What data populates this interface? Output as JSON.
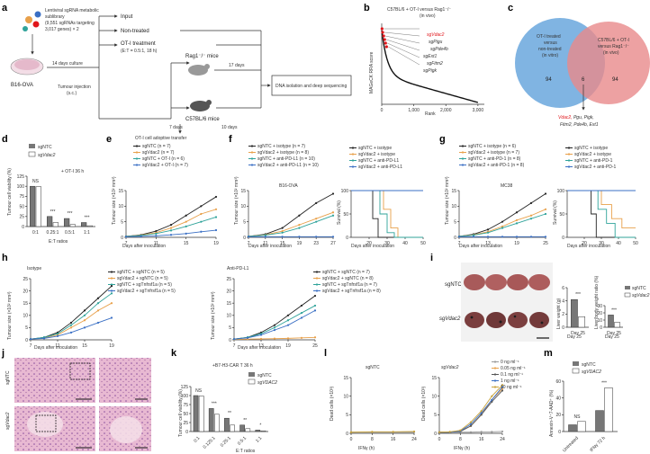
{
  "panels": {
    "a": {
      "letter": "a",
      "library": "Lentiviral sgRNA metabolic sublibrary (9,551 sgRNAs targeting 3,017 genes) × 2",
      "library_lines": [
        "Lentiviral sgRNA metabolic",
        "sublibrary",
        "(9,551 sgRNAs targeting",
        "3,017 genes) × 2"
      ],
      "cell": "B16-OVA",
      "culture": "14 days culture",
      "input": "Input",
      "nontreated": "Non-treated",
      "oti_treatment": "OT-I treatment",
      "et": "(E:T = 0.5:1, 18 h)",
      "tumour_injection": "Tumour injection",
      "sc": "(s.c.)",
      "rag": "Rag1⁻/⁻ mice",
      "c57": "C57BL/6 mice",
      "days17": "17 days",
      "days7": "7 days",
      "days10": "10 days",
      "transfer": "OT-I cell adoptive transfer",
      "dna": "DNA isolation and deep sequencing"
    },
    "b": {
      "letter": "b",
      "title": "C57BL/6 + OT-I versus Rag1⁻/⁻",
      "subtitle": "(in vivo)",
      "ylabel": "MAGeCK RRA score",
      "xlabel": "Rank",
      "genes": [
        "sgVdac2",
        "sgPigu",
        "sgPde4b",
        "sgExt1",
        "sgFitm2",
        "sgPigk"
      ],
      "highlight_color": "#e0161b"
    },
    "c": {
      "letter": "c",
      "left_label": [
        "OT-I treated",
        "versus",
        "non-treated",
        "(in vitro)"
      ],
      "right_label": [
        "C57BL/6 + OT-I",
        "versus Rag1⁻/⁻",
        "(in vivo)"
      ],
      "left_n": "94",
      "overlap_n": "6",
      "right_n": "94",
      "genes_red": "Vdac2,",
      "genes_rest": " Pgu, Pigk,",
      "genes_line2": "Fitm2, Pde4b, Ext1",
      "left_color": "#5b9bd5",
      "right_color": "#e8898b"
    },
    "d": {
      "letter": "d",
      "ylabel": "Tumour cell viability (%)",
      "xlabel": "E:T ratios",
      "annotation": "+ OT-I 36 h",
      "legend": [
        "sgNTC",
        "sgVdac2"
      ],
      "sig": [
        "NS",
        "***",
        "***",
        "***"
      ]
    },
    "e": {
      "letter": "e",
      "ylabel": "Tumour size (×10² mm³)",
      "xlabel": "Days after inoculation",
      "legend": [
        "sgNTC (n = 7)",
        "sgVdac2 (n = 7)",
        "sgNTC + OT-I (n = 6)",
        "sgVdac2 + OT-I (n = 7)"
      ]
    },
    "f": {
      "letter": "f",
      "ylabel": "Tumour size (×10² mm³)",
      "xlabel": "Days after inoculation",
      "tag": "B16-OVA",
      "legend": [
        "sgNTC + isotype (n = 7)",
        "sgVdac2 + isotype (n = 8)",
        "sgNTC + anti-PD-L1 (n = 10)",
        "sgVdac2 + anti-PD-L1 (n = 10)"
      ],
      "surv_legend": [
        "sgNTC + isotype",
        "sgVdac2 + isotype",
        "sgNTC + anti-PD-L1",
        "sgVdac2 + anti-PD-L1"
      ],
      "surv_ylabel": "Survival (%)"
    },
    "g": {
      "letter": "g",
      "ylabel": "Tumour size (×10² mm³)",
      "xlabel": "Days after inoculation",
      "tag": "MC38",
      "legend": [
        "sgNTC + isotype (n = 6)",
        "sgVdac2 + isotype (n = 7)",
        "sgNTC + anti-PD-1 (n = 8)",
        "sgVdac2 + anti-PD-1 (n = 8)"
      ],
      "surv_legend": [
        "sgNTC + isotype",
        "sgVdac2 + isotype",
        "sgNTC + anti-PD-1",
        "sgVdac2 + anti-PD-1"
      ],
      "surv_ylabel": "Survival (%)"
    },
    "h": {
      "letter": "h",
      "ylabel": "Tumour size (×10² mm³)",
      "xlabel": "Days after inoculation",
      "left_tag": "Isotype",
      "right_tag": "Anti-PD-L1",
      "left_legend": [
        "sgNTC + sgNTC (n = 5)",
        "sgVdac2 + sgNTC (n = 5)",
        "sgNTC + sgTnfrsf1a (n = 5)",
        "sgVdac2 + sgTnfrsf1a (n = 5)"
      ],
      "right_legend": [
        "sgNTC + sgNTC (n = 7)",
        "sgVdac2 + sgNTC (n = 8)",
        "sgNTC + sgTnfrsf1a (n = 7)",
        "sgVdac2 + sgTnfrsf1a (n = 8)"
      ]
    },
    "i": {
      "letter": "i",
      "row1": "sgNTC",
      "row2": "sgVdac2",
      "ylabel1": "Liver weight (g)",
      "ylabel2": "Liver/body weight ratio (%)",
      "xlabel": "Day 25",
      "legend": [
        "sgNTC",
        "sgVdac2"
      ]
    },
    "j": {
      "letter": "j",
      "row1": "sgNTC",
      "row2": "sgVdac2"
    },
    "k": {
      "letter": "k",
      "ylabel": "Tumour cell viability (%)",
      "xlabel": "E:T ratios",
      "annotation": "+B7-H3-CAR T 36 h",
      "legend": [
        "sgNTC",
        "sgVDAC2"
      ],
      "sig": [
        "NS",
        "***",
        "**",
        "**",
        "*"
      ]
    },
    "l": {
      "letter": "l",
      "ylabel": "Dead cells (×10³)",
      "xlabel": "IFNγ (h)",
      "left_tag": "sgNTC",
      "right_tag": "sgVdac2",
      "legend": [
        "0 ng ml⁻¹",
        "0.05 ng ml⁻¹",
        "0.1 ng ml⁻¹",
        "1 ng ml⁻¹",
        "10 ng ml⁻¹"
      ],
      "legend_colors": [
        "#999999",
        "#e8a04a",
        "#555555",
        "#3a6fc4",
        "#c8a23a"
      ]
    },
    "m": {
      "letter": "m",
      "ylabel": "Annexin-V⁺7-AAD⁺ (%)",
      "legend": [
        "sgNTC",
        "sgVDAC2"
      ],
      "categories": [
        "Untreated",
        "IFNγ 72 h"
      ],
      "sig": [
        "NS",
        "***"
      ]
    }
  },
  "chart_data": [
    {
      "panel": "d",
      "type": "bar",
      "categories": [
        "0:1",
        "0.25:1",
        "0.5:1",
        "1:1"
      ],
      "series": [
        {
          "name": "sgNTC",
          "values": [
            100,
            25,
            20,
            10
          ]
        },
        {
          "name": "sgVdac2",
          "values": [
            99,
            10,
            5,
            2
          ]
        }
      ],
      "ylim": [
        0,
        125
      ],
      "yticks": [
        0,
        25,
        50,
        75,
        100,
        125
      ]
    },
    {
      "panel": "k",
      "type": "bar",
      "categories": [
        "0:1",
        "0.125:1",
        "0.25:1",
        "0.5:1",
        "1:1"
      ],
      "series": [
        {
          "name": "sgNTC",
          "values": [
            100,
            64,
            37,
            18,
            4
          ]
        },
        {
          "name": "sgVDAC2",
          "values": [
            99,
            48,
            18,
            8,
            2
          ]
        }
      ],
      "ylim": [
        0,
        125
      ],
      "yticks": [
        0,
        25,
        50,
        75,
        100,
        125
      ]
    },
    {
      "panel": "m",
      "type": "bar",
      "categories": [
        "Untreated",
        "IFNγ 72 h"
      ],
      "series": [
        {
          "name": "sgNTC",
          "values": [
            8,
            25
          ]
        },
        {
          "name": "sgVDAC2",
          "values": [
            12,
            52
          ]
        }
      ],
      "ylim": [
        0,
        60
      ],
      "yticks": [
        0,
        20,
        40,
        60
      ]
    },
    {
      "panel": "i-weight",
      "type": "bar",
      "categories": [
        "Day 25"
      ],
      "series": [
        {
          "name": "sgNTC",
          "values": [
            4.2
          ]
        },
        {
          "name": "sgVdac2",
          "values": [
            1.6
          ]
        }
      ],
      "ylim": [
        0,
        6
      ],
      "yticks": [
        0,
        2,
        4,
        6
      ]
    },
    {
      "panel": "i-ratio",
      "type": "bar",
      "categories": [
        "Day 25"
      ],
      "series": [
        {
          "name": "sgNTC",
          "values": [
            17
          ]
        },
        {
          "name": "sgVdac2",
          "values": [
            7
          ]
        }
      ],
      "ylim": [
        0,
        30
      ],
      "yticks": [
        0,
        10,
        20,
        30
      ]
    },
    {
      "panel": "b",
      "type": "scatter",
      "xlabel": "Rank",
      "ylabel": "MAGeCK RRA score",
      "xticks": [
        0,
        1000,
        2000,
        3000
      ]
    },
    {
      "panel": "e",
      "type": "line",
      "x": [
        7,
        9,
        11,
        13,
        15,
        17,
        19
      ],
      "xticks": [
        7,
        11,
        15,
        19
      ],
      "yticks": [
        0,
        5,
        10,
        15
      ],
      "ylim": [
        0,
        15
      ],
      "series": [
        {
          "name": "sgNTC (n = 7)",
          "values": [
            0.3,
            0.8,
            2,
            4,
            7,
            10,
            13
          ],
          "color": "#222222"
        },
        {
          "name": "sgVdac2 (n = 7)",
          "values": [
            0.3,
            0.7,
            1.5,
            3,
            5,
            7.5,
            9
          ],
          "color": "#e8a04a"
        },
        {
          "name": "sgNTC + OT-I (n = 6)",
          "values": [
            0.3,
            0.6,
            1.2,
            2.2,
            3.5,
            5,
            6.5
          ],
          "color": "#2fa39a"
        },
        {
          "name": "sgVdac2 + OT-I (n = 7)",
          "values": [
            0.2,
            0.3,
            0.5,
            0.8,
            1.2,
            1.8,
            2.3
          ],
          "color": "#3a6fc4"
        }
      ]
    },
    {
      "panel": "f",
      "type": "line",
      "x": [
        7,
        11,
        15,
        19,
        23,
        27
      ],
      "xticks": [
        7,
        11,
        15,
        19,
        23,
        27
      ],
      "yticks": [
        0,
        5,
        10,
        15
      ],
      "ylim": [
        0,
        15
      ],
      "series": [
        {
          "name": "sgNTC + isotype (n = 7)",
          "values": [
            0.3,
            1,
            3,
            7,
            11,
            14
          ],
          "color": "#222222"
        },
        {
          "name": "sgVdac2 + isotype (n = 8)",
          "values": [
            0.3,
            0.8,
            2,
            4,
            6,
            8
          ],
          "color": "#e8a04a"
        },
        {
          "name": "sgNTC + anti-PD-L1 (n = 10)",
          "values": [
            0.3,
            0.7,
            1.5,
            3,
            5,
            7
          ],
          "color": "#2fa39a"
        },
        {
          "name": "sgVdac2 + anti-PD-L1 (n = 10)",
          "values": [
            0.2,
            0.2,
            0.2,
            0.2,
            0.2,
            0.2
          ],
          "color": "#3a6fc4"
        }
      ]
    },
    {
      "panel": "g",
      "type": "line",
      "x": [
        7,
        10,
        13,
        16,
        19,
        22,
        25
      ],
      "xticks": [
        7,
        13,
        19,
        25
      ],
      "yticks": [
        0,
        5,
        10,
        15
      ],
      "ylim": [
        0,
        15
      ],
      "series": [
        {
          "name": "sgNTC + isotype (n = 6)",
          "values": [
            0.3,
            1,
            2.5,
            5,
            8,
            11,
            14
          ],
          "color": "#222222"
        },
        {
          "name": "sgVdac2 + isotype (n = 7)",
          "values": [
            0.3,
            0.8,
            1.8,
            3.5,
            5.5,
            7,
            9
          ],
          "color": "#e8a04a"
        },
        {
          "name": "sgNTC + anti-PD-1 (n = 8)",
          "values": [
            0.3,
            0.7,
            1.5,
            3,
            4.5,
            6,
            7.5
          ],
          "color": "#2fa39a"
        },
        {
          "name": "sgVdac2 + anti-PD-1 (n = 8)",
          "values": [
            0.2,
            0.2,
            0.2,
            0.2,
            0.2,
            0.2,
            0.2
          ],
          "color": "#3a6fc4"
        }
      ]
    },
    {
      "panel": "h-isotype",
      "type": "line",
      "x": [
        7,
        9,
        11,
        13,
        15,
        17,
        19
      ],
      "xticks": [
        7,
        11,
        15,
        19
      ],
      "yticks": [
        0,
        5,
        10,
        15,
        20,
        25
      ],
      "ylim": [
        0,
        25
      ],
      "series": [
        {
          "name": "sgNTC + sgNTC (n = 5)",
          "values": [
            0.3,
            1,
            3,
            7,
            12,
            17,
            22
          ],
          "color": "#222222"
        },
        {
          "name": "sgVdac2 + sgNTC (n = 5)",
          "values": [
            0.3,
            0.8,
            2,
            5,
            8,
            12,
            15
          ],
          "color": "#e8a04a"
        },
        {
          "name": "sgNTC + sgTnfrsf1a (n = 5)",
          "values": [
            0.3,
            1,
            2.5,
            6,
            10,
            15,
            19
          ],
          "color": "#2fa39a"
        },
        {
          "name": "sgVdac2 + sgTnfrsf1a (n = 5)",
          "values": [
            0.3,
            0.6,
            1.5,
            3,
            5,
            7,
            9
          ],
          "color": "#3a6fc4"
        }
      ]
    },
    {
      "panel": "h-antiPDL1",
      "type": "line",
      "x": [
        7,
        10,
        13,
        16,
        19,
        22,
        25
      ],
      "xticks": [
        7,
        13,
        19,
        25
      ],
      "yticks": [
        0,
        5,
        10,
        15,
        20,
        25
      ],
      "ylim": [
        0,
        25
      ],
      "series": [
        {
          "name": "sgNTC + sgNTC (n = 7)",
          "values": [
            0.3,
            1,
            3,
            6,
            10,
            14,
            18
          ],
          "color": "#222222"
        },
        {
          "name": "sgVdac2 + sgNTC (n = 8)",
          "values": [
            0.2,
            0.3,
            0.4,
            0.5,
            0.6,
            0.8,
            1
          ],
          "color": "#e8a04a"
        },
        {
          "name": "sgNTC + sgTnfrsf1a (n = 7)",
          "values": [
            0.3,
            1,
            2.5,
            5,
            8,
            11,
            14
          ],
          "color": "#2fa39a"
        },
        {
          "name": "sgVdac2 + sgTnfrsf1a (n = 8)",
          "values": [
            0.3,
            0.8,
            2,
            4,
            6,
            9,
            12
          ],
          "color": "#3a6fc4"
        }
      ]
    },
    {
      "panel": "l-sgNTC",
      "type": "line",
      "x": [
        0,
        8,
        16,
        24
      ],
      "xticks": [
        0,
        8,
        16,
        24
      ],
      "yticks": [
        0,
        5,
        10,
        15
      ],
      "ylim": [
        0,
        15
      ],
      "series": [
        {
          "name": "0 ng ml⁻¹",
          "values": [
            0.3,
            0.3,
            0.3,
            0.3
          ]
        },
        {
          "name": "10 ng ml⁻¹",
          "values": [
            0.3,
            0.4,
            0.4,
            0.5
          ]
        }
      ]
    },
    {
      "panel": "l-sgVdac2",
      "type": "line",
      "x": [
        0,
        4,
        8,
        12,
        16,
        20,
        24
      ],
      "xticks": [
        0,
        8,
        16,
        24
      ],
      "yticks": [
        0,
        5,
        10,
        15
      ],
      "ylim": [
        0,
        15
      ],
      "series": [
        {
          "name": "0 ng ml⁻¹",
          "values": [
            0.3,
            0.3,
            0.3,
            0.3,
            0.4,
            0.4,
            0.5
          ]
        },
        {
          "name": "0.05 ng ml⁻¹",
          "values": [
            0.3,
            0.3,
            0.5,
            2,
            5,
            9,
            12
          ]
        },
        {
          "name": "0.1 ng ml⁻¹",
          "values": [
            0.3,
            0.3,
            0.5,
            2,
            5,
            8.5,
            11.5
          ]
        },
        {
          "name": "1 ng ml⁻¹",
          "values": [
            0.3,
            0.3,
            0.6,
            2.5,
            5.5,
            9,
            12.5
          ]
        },
        {
          "name": "10 ng ml⁻¹",
          "values": [
            0.3,
            0.4,
            0.8,
            3,
            6,
            10,
            13
          ]
        }
      ]
    },
    {
      "panel": "f-survival",
      "type": "line",
      "x": [
        0,
        20,
        40,
        60,
        80,
        100
      ],
      "xticks": [
        20,
        30,
        40,
        50
      ],
      "yticks": [
        0,
        50,
        100
      ],
      "ylabel": "Survival (%)"
    },
    {
      "panel": "g-survival",
      "type": "line",
      "x": [
        0,
        20,
        40,
        60,
        80,
        100
      ],
      "xticks": [
        20,
        30,
        40,
        50
      ],
      "yticks": [
        0,
        50,
        100
      ],
      "ylabel": "Survival (%)"
    }
  ]
}
